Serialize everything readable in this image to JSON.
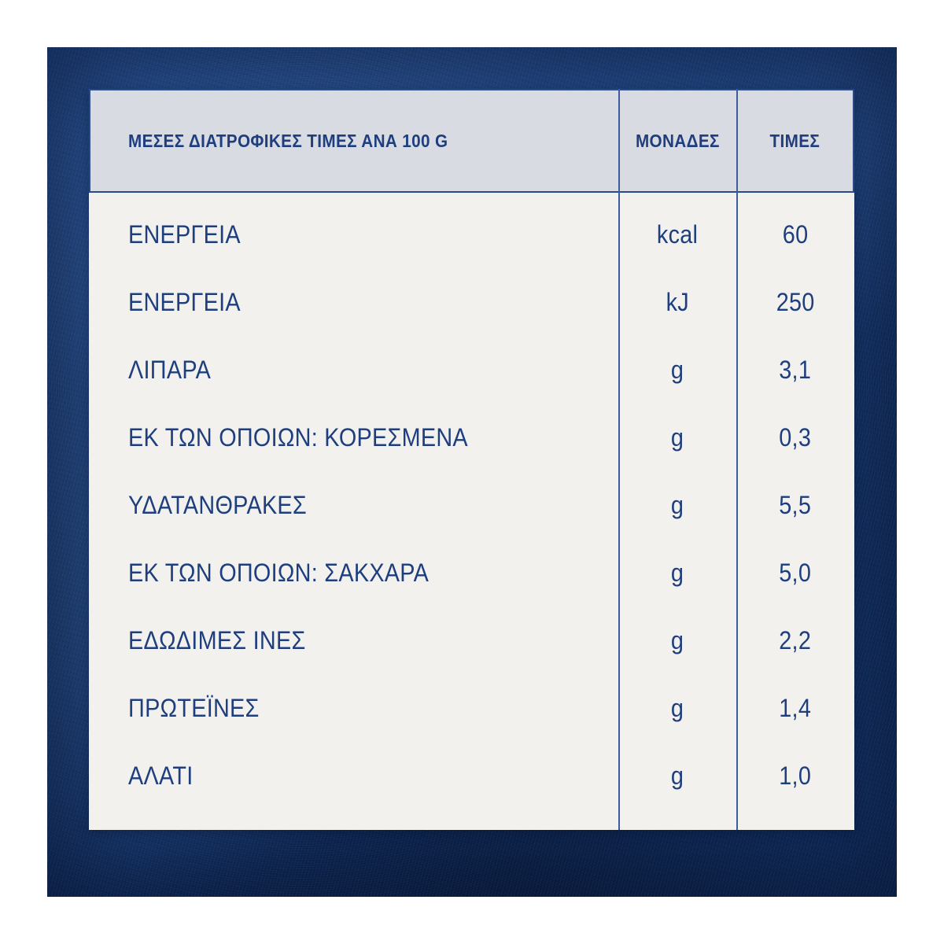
{
  "colors": {
    "background_navy": "#143469",
    "background_navy_light": "#2f5da6",
    "header_background": "#d9dbe2",
    "body_background": "#f2f1ed",
    "text_navy": "#1e3e7e",
    "line_navy": "#2b4a88"
  },
  "table": {
    "header": {
      "title": "ΜΕΣΕΣ ΔΙΑΤΡΟΦΙΚΕΣ ΤΙΜΕΣ ΑΝΑ 100 G",
      "units_column": "ΜΟΝΑΔΕΣ",
      "values_column": "ΤΙΜΕΣ"
    },
    "rows": [
      {
        "label": "ΕΝΕΡΓΕΙΑ",
        "unit": "kcal",
        "value": "60"
      },
      {
        "label": "ΕΝΕΡΓΕΙΑ",
        "unit": "kJ",
        "value": "250"
      },
      {
        "label": "ΛΙΠΑΡΑ",
        "unit": "g",
        "value": "3,1"
      },
      {
        "label": "ΕΚ ΤΩΝ ΟΠΟΙΩΝ: ΚΟΡΕΣΜΕΝΑ",
        "unit": "g",
        "value": "0,3"
      },
      {
        "label": "ΥΔΑΤΑΝΘΡΑΚΕΣ",
        "unit": "g",
        "value": "5,5"
      },
      {
        "label": "ΕΚ ΤΩΝ ΟΠΟΙΩΝ: ΣΑΚΧΑΡΑ",
        "unit": "g",
        "value": "5,0"
      },
      {
        "label": "ΕΔΩΔΙΜΕΣ ΙΝΕΣ",
        "unit": "g",
        "value": "2,2"
      },
      {
        "label": "ΠΡΩΤΕΪΝΕΣ",
        "unit": "g",
        "value": "1,4"
      },
      {
        "label": "ΑΛΑΤΙ",
        "unit": "g",
        "value": "1,0"
      }
    ]
  }
}
